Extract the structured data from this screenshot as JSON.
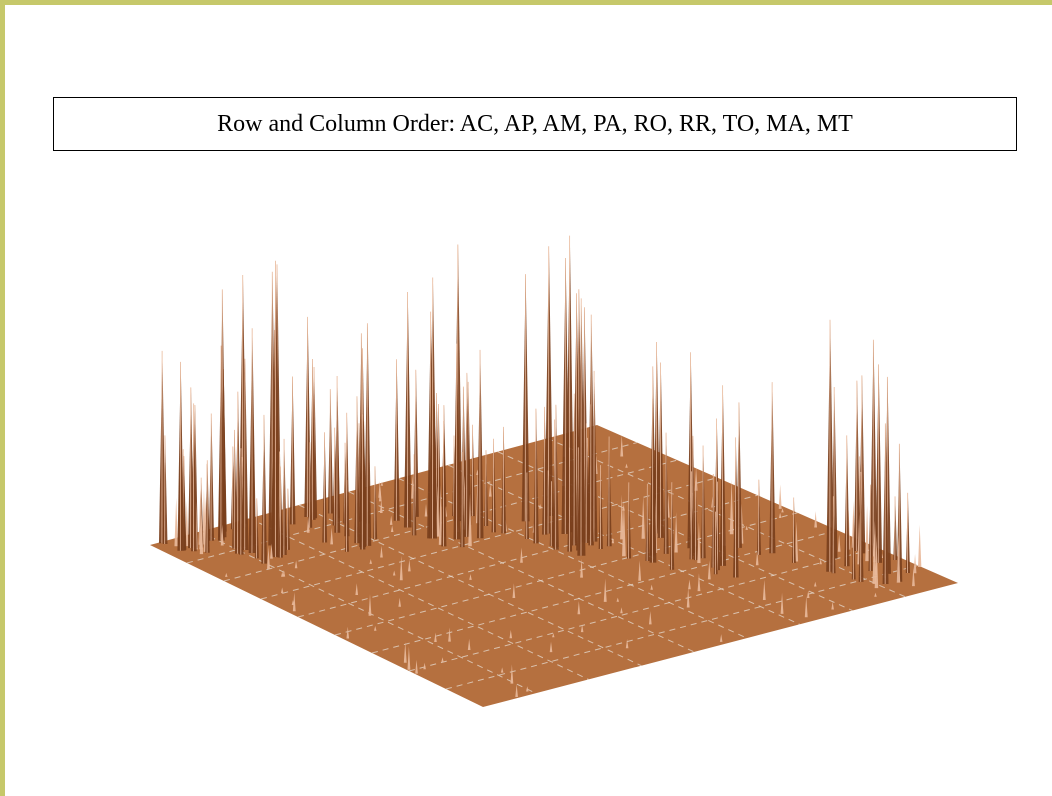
{
  "caption": "Row and Column Order: AC, AP, AM, PA, RO, RR, TO, MA, MT",
  "colors": {
    "frame": "#c6c86a",
    "surface": "#b5703f",
    "surface_dark": "#7a3f1c",
    "spike_light": "#e8b89a",
    "grid_line": "#e6dcd2"
  },
  "grid_divisions": 9
}
